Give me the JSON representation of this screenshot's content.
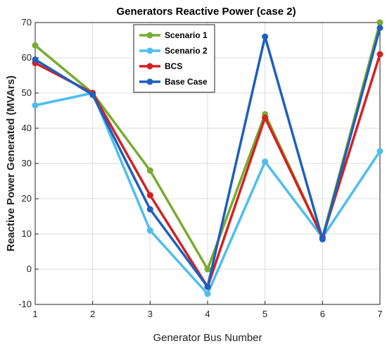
{
  "chart_data": {
    "type": "line",
    "title": "Generators Reactive Power (case 2)",
    "xlabel": "Generator Bus Number",
    "ylabel": "Reactive Power Generated (MVArs)",
    "x": [
      1,
      2,
      3,
      4,
      5,
      6,
      7
    ],
    "xlim": [
      1,
      7
    ],
    "ylim": [
      -10,
      70
    ],
    "yticks": [
      -10,
      0,
      10,
      20,
      30,
      40,
      50,
      60,
      70
    ],
    "xticks": [
      1,
      2,
      3,
      4,
      5,
      6,
      7
    ],
    "grid": true,
    "legend_position": "top-center",
    "series": [
      {
        "name": "Scenario 1",
        "color": "#77ac30",
        "values": [
          63.5,
          50,
          28,
          0,
          44,
          9,
          70
        ]
      },
      {
        "name": "Scenario 2",
        "color": "#4dbeee",
        "values": [
          46.5,
          50,
          11,
          -7,
          30.5,
          9,
          33.5
        ]
      },
      {
        "name": "BCS",
        "color": "#d62020",
        "values": [
          58.5,
          50,
          21,
          -5,
          43,
          9,
          61
        ]
      },
      {
        "name": "Base Case",
        "color": "#1f5fbf",
        "values": [
          59.5,
          49.5,
          17,
          -5,
          66,
          8.5,
          68.5
        ]
      }
    ]
  }
}
